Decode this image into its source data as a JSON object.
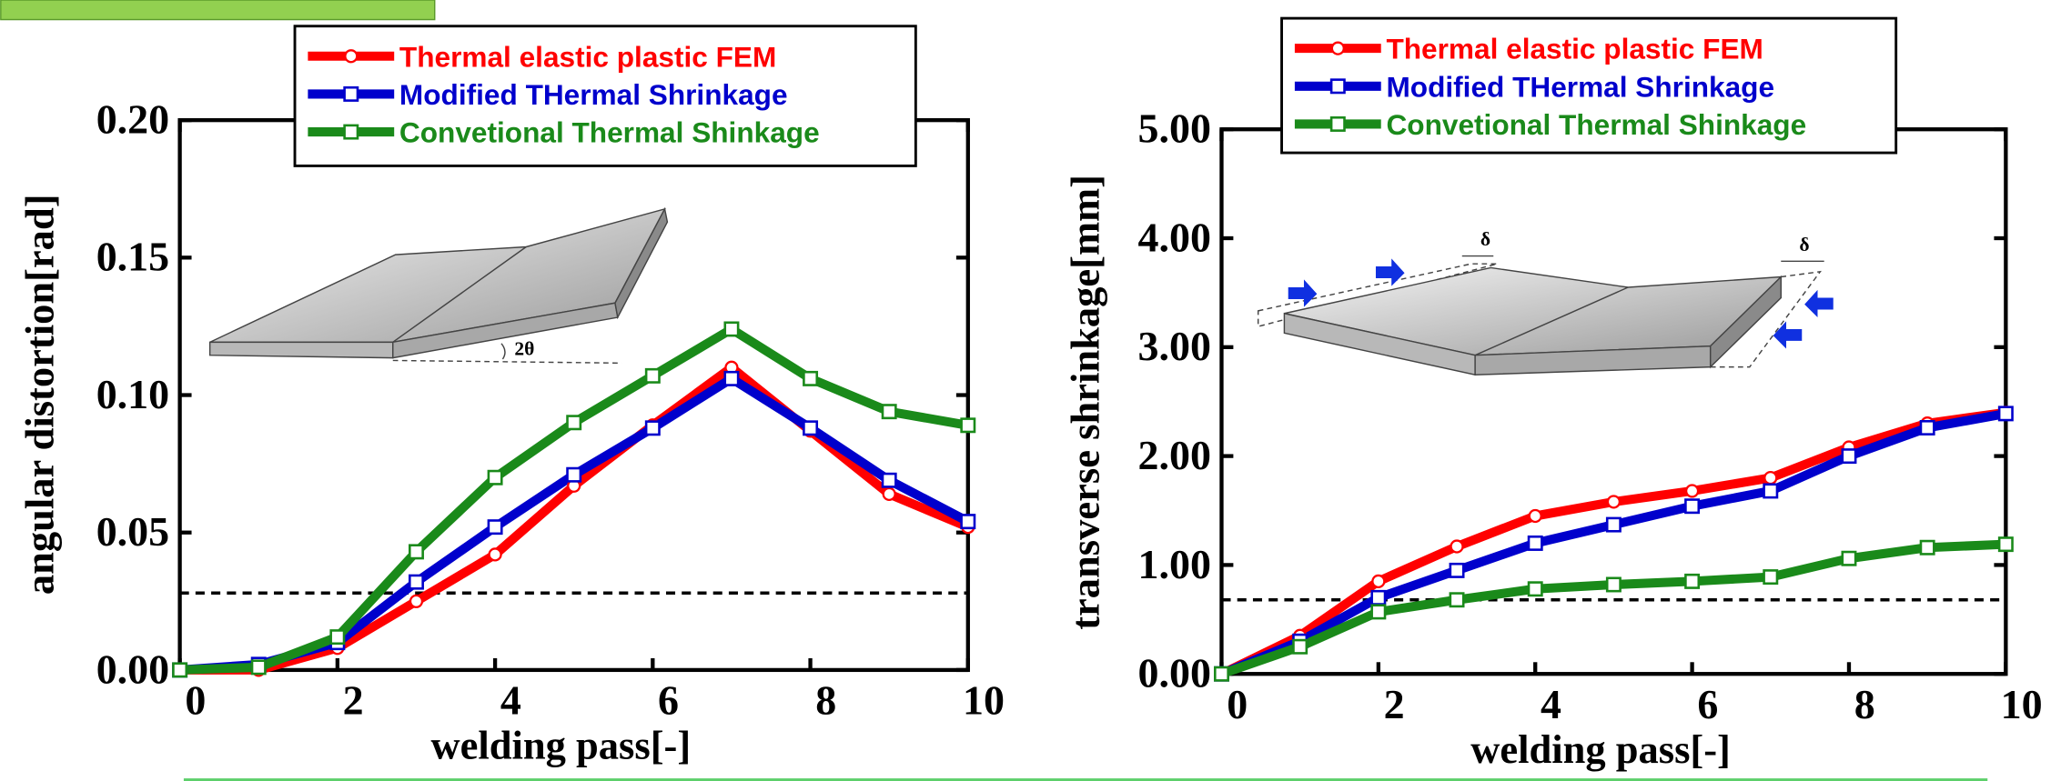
{
  "chart_data": [
    {
      "type": "line",
      "x": [
        0,
        1,
        2,
        3,
        4,
        5,
        6,
        7,
        8,
        9,
        10
      ],
      "xlim": [
        0,
        10
      ],
      "xticks": [
        0,
        2,
        4,
        6,
        8,
        10
      ],
      "ylim": [
        0,
        0.2
      ],
      "yticks": [
        {
          "value": 0,
          "label": "0.00"
        },
        {
          "value": 0.05,
          "label": "0.05"
        },
        {
          "value": 0.1,
          "label": "0.10"
        },
        {
          "value": 0.15,
          "label": "0.15"
        },
        {
          "value": 0.2,
          "label": "0.20"
        }
      ],
      "x_label": "welding pass[-]",
      "y_label": "angular distortion[rad]",
      "hline": 0.028,
      "annotations": [
        "2θ"
      ],
      "series": [
        {
          "name": "Thermal elastic plastic FEM",
          "color": "#ff0000",
          "marker": "circle",
          "values": [
            0,
            0,
            0.008,
            0.025,
            0.042,
            0.067,
            0.089,
            0.11,
            0.087,
            0.064,
            0.052
          ]
        },
        {
          "name": "Modified THermal Shrinkage",
          "color": "#0000cc",
          "marker": "square",
          "values": [
            0,
            0.002,
            0.01,
            0.032,
            0.052,
            0.071,
            0.088,
            0.106,
            0.088,
            0.069,
            0.054
          ]
        },
        {
          "name": "Convetional Thermal Shinkage",
          "color": "#1a8a1a",
          "marker": "square",
          "values": [
            0,
            0.001,
            0.012,
            0.043,
            0.07,
            0.09,
            0.107,
            0.124,
            0.106,
            0.094,
            0.089
          ]
        }
      ]
    },
    {
      "type": "line",
      "x": [
        0,
        1,
        2,
        3,
        4,
        5,
        6,
        7,
        8,
        9,
        10
      ],
      "xlim": [
        0,
        10
      ],
      "xticks": [
        0,
        2,
        4,
        6,
        8,
        10
      ],
      "ylim": [
        0,
        5
      ],
      "yticks": [
        {
          "value": 0,
          "label": "0.00"
        },
        {
          "value": 1,
          "label": "1.00"
        },
        {
          "value": 2,
          "label": "2.00"
        },
        {
          "value": 3,
          "label": "3.00"
        },
        {
          "value": 4,
          "label": "4.00"
        },
        {
          "value": 5,
          "label": "5.00"
        }
      ],
      "x_label": "welding pass[-]",
      "y_label": "transverse shrinkage[mm]",
      "hline": 0.68,
      "annotations": [
        "δ",
        "δ"
      ],
      "series": [
        {
          "name": "Thermal elastic plastic FEM",
          "color": "#ff0000",
          "marker": "circle",
          "values": [
            0,
            0.35,
            0.85,
            1.17,
            1.45,
            1.58,
            1.68,
            1.8,
            2.08,
            2.3,
            2.4
          ]
        },
        {
          "name": "Modified THermal Shrinkage",
          "color": "#0000cc",
          "marker": "square",
          "values": [
            0,
            0.3,
            0.7,
            0.95,
            1.2,
            1.37,
            1.54,
            1.68,
            2.0,
            2.26,
            2.39
          ]
        },
        {
          "name": "Convetional Thermal Shinkage",
          "color": "#1a8a1a",
          "marker": "square",
          "values": [
            0,
            0.25,
            0.57,
            0.68,
            0.78,
            0.82,
            0.85,
            0.89,
            1.06,
            1.16,
            1.19
          ]
        }
      ]
    }
  ]
}
